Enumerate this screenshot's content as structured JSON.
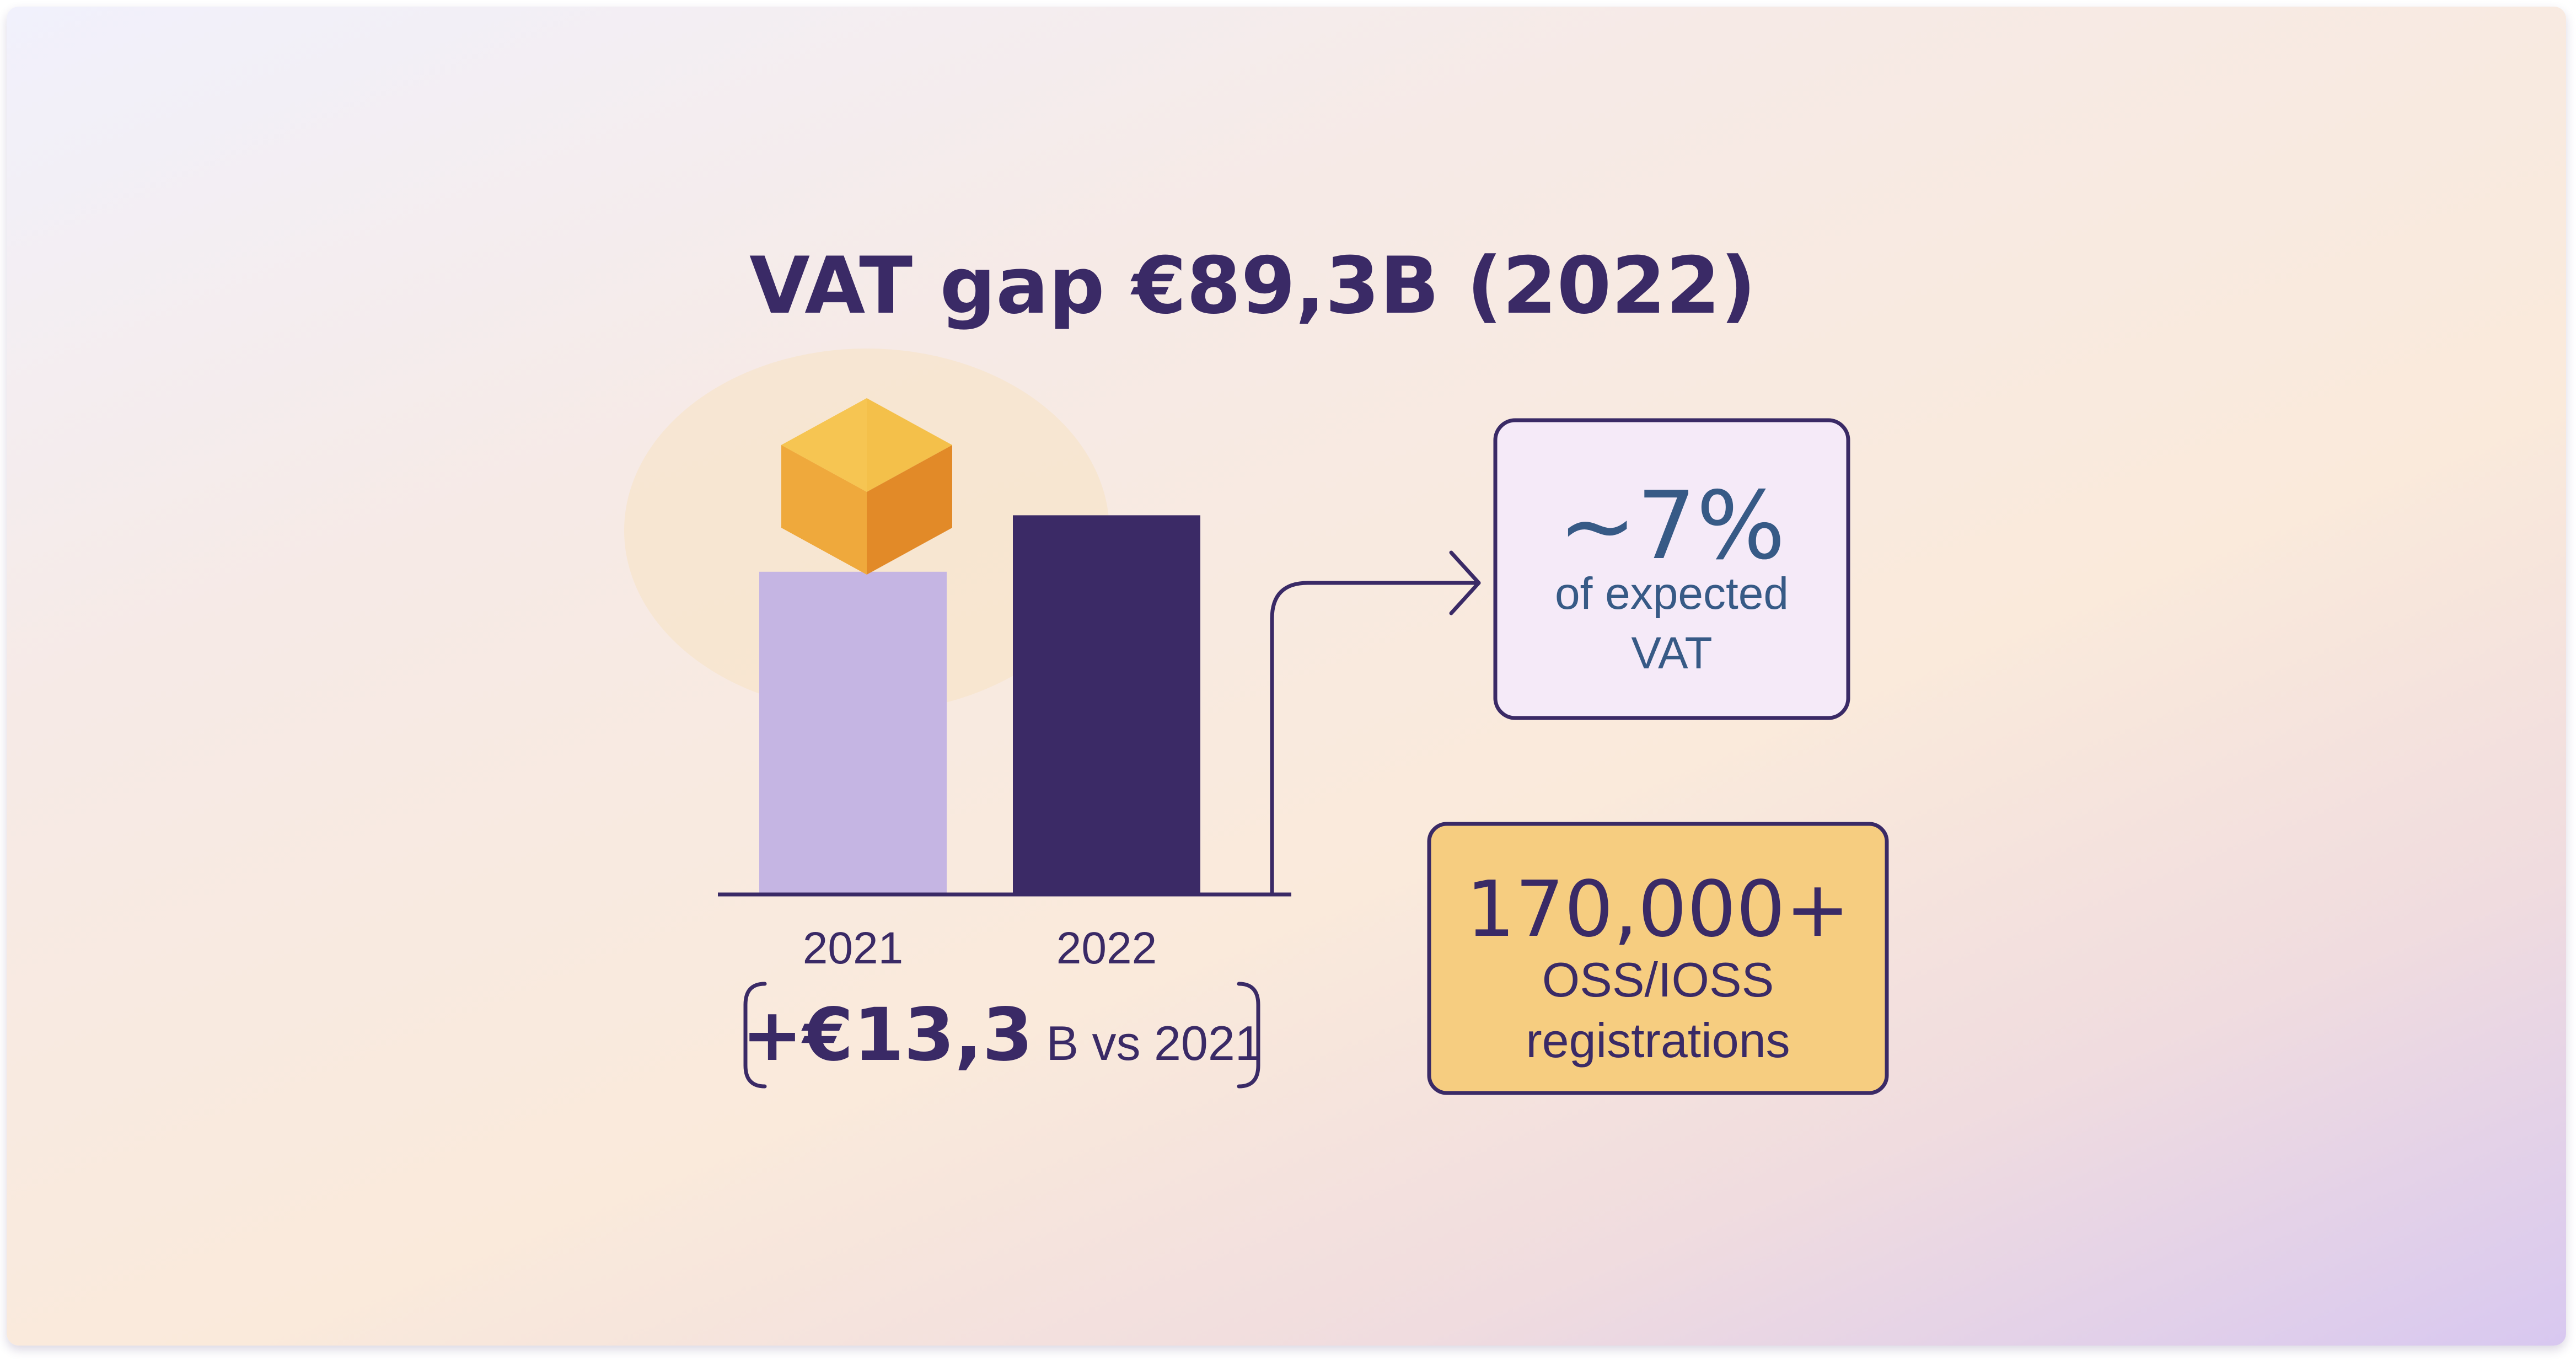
{
  "colors": {
    "bar_2021": "#c5b5e3",
    "bar_2022": "#3b2a66",
    "ink": "#3a2a66",
    "pct_text": "#375a86",
    "pct_card": "#f5eaf8",
    "reg_card": "#f6cd80"
  },
  "chart_data": {
    "type": "bar",
    "title": "VAT gap €89,3B (2022)",
    "categories": [
      "2021",
      "2022"
    ],
    "values": [
      76.0,
      89.3
    ],
    "ylim": [
      0,
      100
    ],
    "grid": false,
    "legend": "none"
  },
  "annotations": {
    "delta_big": "+€13,3",
    "delta_small": "B vs 2021",
    "pct_value": "~7%",
    "pct_line1": "of expected",
    "pct_line2": "VAT",
    "reg_value": "170,000+",
    "reg_line1": "OSS/IOSS",
    "reg_line2": "registrations"
  },
  "icons": [
    "cube-icon",
    "arrow-right-icon",
    "bracket-left-icon",
    "bracket-right-icon"
  ]
}
